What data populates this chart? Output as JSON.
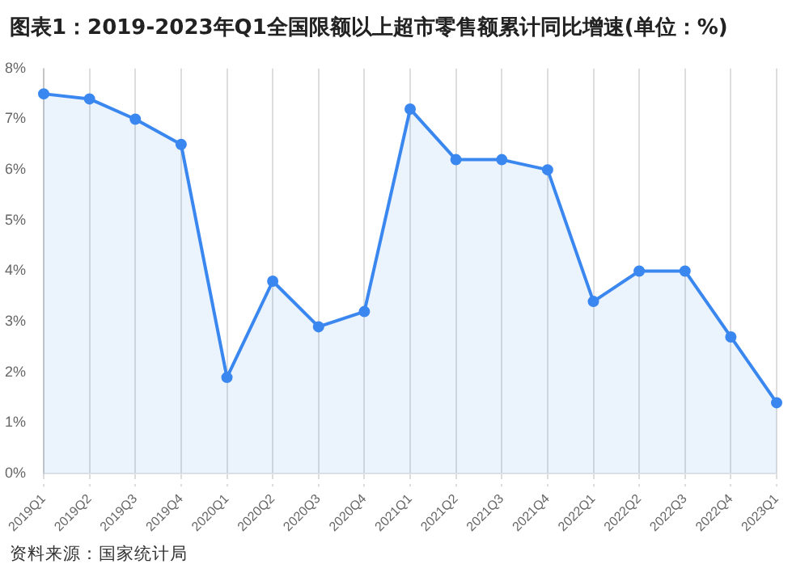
{
  "chart_data": {
    "type": "area",
    "title": "图表1：2019-2023年Q1全国限额以上超市零售额累计同比增速(单位：%)",
    "categories": [
      "2019Q1",
      "2019Q2",
      "2019Q3",
      "2019Q4",
      "2020Q1",
      "2020Q2",
      "2020Q3",
      "2020Q4",
      "2021Q1",
      "2021Q2",
      "2021Q3",
      "2021Q4",
      "2022Q1",
      "2022Q2",
      "2022Q3",
      "2022Q4",
      "2023Q1"
    ],
    "series": [
      {
        "color": "#3a87f0",
        "values": [
          7.5,
          7.4,
          7.0,
          6.5,
          1.9,
          3.8,
          2.9,
          3.2,
          7.2,
          6.2,
          6.2,
          6.0,
          3.4,
          4.0,
          4.0,
          2.7,
          1.4
        ]
      }
    ],
    "ylim": [
      0,
      8
    ],
    "yticks": [
      {
        "value": 0,
        "label": "0%"
      },
      {
        "value": 1,
        "label": "1%"
      },
      {
        "value": 2,
        "label": "2%"
      },
      {
        "value": 3,
        "label": "3%"
      },
      {
        "value": 4,
        "label": "4%"
      },
      {
        "value": 5,
        "label": "5%"
      },
      {
        "value": 6,
        "label": "6%"
      },
      {
        "value": 7,
        "label": "7%"
      },
      {
        "value": 8,
        "label": "8%"
      }
    ],
    "grid": "x",
    "marker": "circle",
    "line_style": "solid",
    "annotations": [
      "资料来源：国家统计局"
    ]
  }
}
